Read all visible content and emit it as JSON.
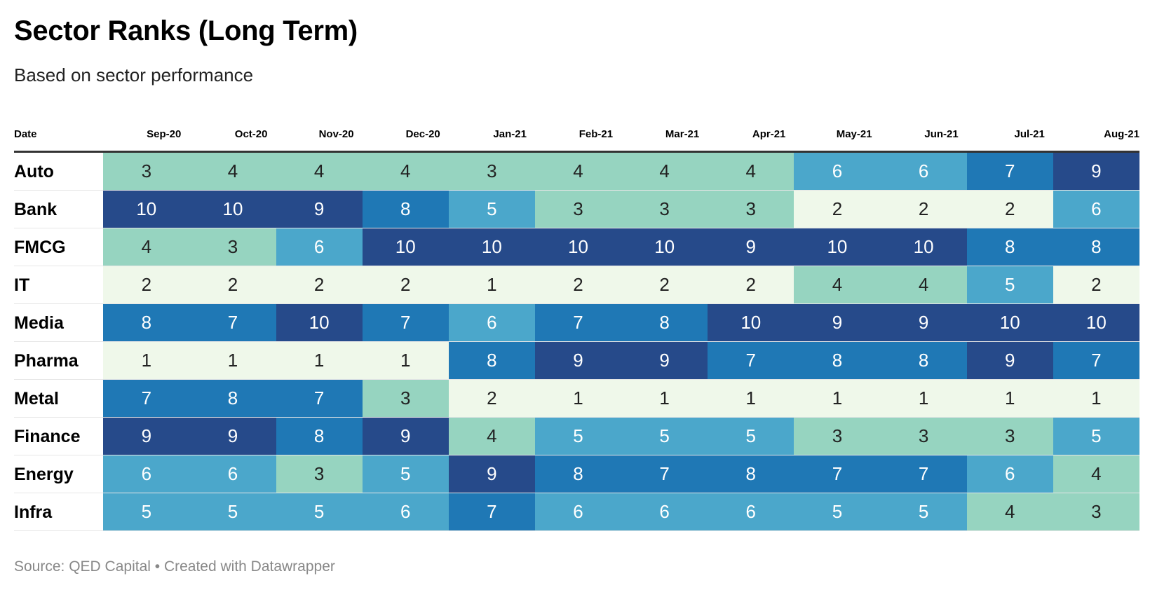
{
  "header": {
    "title": "Sector Ranks (Long Term)",
    "subtitle": "Based on sector performance"
  },
  "footer": {
    "source": "Source: QED Capital • Created with Datawrapper"
  },
  "colors": {
    "rank_scale": {
      "1": "#eff8ea",
      "2": "#eff8ea",
      "3": "#96d4c0",
      "4": "#96d4c0",
      "5": "#4ba7cb",
      "6": "#4ba7cb",
      "7": "#1f78b5",
      "8": "#1f78b5",
      "9": "#264a8a",
      "10": "#264a8a"
    },
    "dark_text": "#222222",
    "light_text": "#ffffff"
  },
  "chart_data": {
    "type": "table",
    "title": "Sector Ranks (Long Term)",
    "subtitle": "Based on sector performance",
    "row_header": "Date",
    "columns": [
      "Sep-20",
      "Oct-20",
      "Nov-20",
      "Dec-20",
      "Jan-21",
      "Feb-21",
      "Mar-21",
      "Apr-21",
      "May-21",
      "Jun-21",
      "Jul-21",
      "Aug-21"
    ],
    "rows": [
      {
        "label": "Auto",
        "values": [
          3,
          4,
          4,
          4,
          3,
          4,
          4,
          4,
          6,
          6,
          7,
          9
        ]
      },
      {
        "label": "Bank",
        "values": [
          10,
          10,
          9,
          8,
          5,
          3,
          3,
          3,
          2,
          2,
          2,
          6
        ]
      },
      {
        "label": "FMCG",
        "values": [
          4,
          3,
          6,
          10,
          10,
          10,
          10,
          9,
          10,
          10,
          8,
          8
        ]
      },
      {
        "label": "IT",
        "values": [
          2,
          2,
          2,
          2,
          1,
          2,
          2,
          2,
          4,
          4,
          5,
          2
        ]
      },
      {
        "label": "Media",
        "values": [
          8,
          7,
          10,
          7,
          6,
          7,
          8,
          10,
          9,
          9,
          10,
          10
        ]
      },
      {
        "label": "Pharma",
        "values": [
          1,
          1,
          1,
          1,
          8,
          9,
          9,
          7,
          8,
          8,
          9,
          7
        ]
      },
      {
        "label": "Metal",
        "values": [
          7,
          8,
          7,
          3,
          2,
          1,
          1,
          1,
          1,
          1,
          1,
          1
        ]
      },
      {
        "label": "Finance",
        "values": [
          9,
          9,
          8,
          9,
          4,
          5,
          5,
          5,
          3,
          3,
          3,
          5
        ]
      },
      {
        "label": "Energy",
        "values": [
          6,
          6,
          3,
          5,
          9,
          8,
          7,
          8,
          7,
          7,
          6,
          4
        ]
      },
      {
        "label": "Infra",
        "values": [
          5,
          5,
          5,
          6,
          7,
          6,
          6,
          6,
          5,
          5,
          4,
          3
        ]
      }
    ],
    "source": "Source: QED Capital • Created with Datawrapper"
  }
}
